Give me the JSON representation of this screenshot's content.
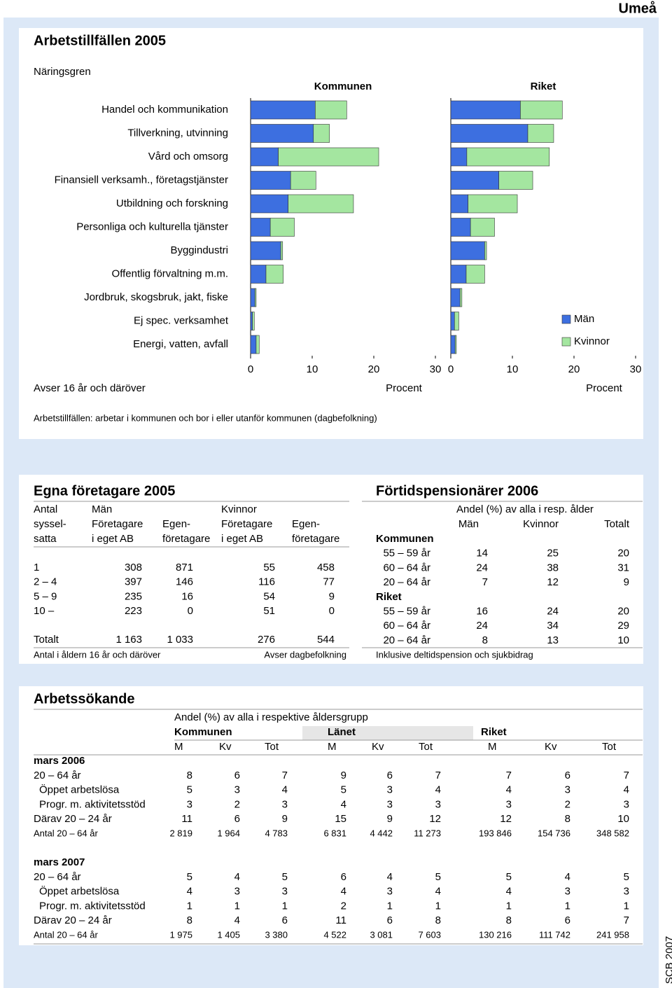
{
  "header": {
    "place": "Umeå",
    "footer_mark": "SCB 2007"
  },
  "arbetstillfallen": {
    "title": "Arbetstillfällen 2005",
    "note": "Avser 16 år och däröver",
    "footnote": "Arbetstillfällen: arbetar i kommunen och bor i eller utanför kommunen (dagbefolkning)"
  },
  "chart_data": [
    {
      "type": "bar",
      "orientation": "horizontal",
      "stacked": true,
      "title": "Kommunen",
      "ylabel": "Näringsgren",
      "xlabel": "Procent",
      "categories": [
        "Handel och kommunikation",
        "Tillverkning, utvinning",
        "Vård och omsorg",
        "Finansiell verksamh., företagstjänster",
        "Utbildning och forskning",
        "Personliga och kulturella tjänster",
        "Byggindustri",
        "Offentlig förvaltning m.m.",
        "Jordbruk, skogsbruk, jakt, fiske",
        "Ej spec. verksamhet",
        "Energi, vatten, avfall"
      ],
      "series": [
        {
          "color": "#3d6fe0",
          "values": [
            10.5,
            10.2,
            4.5,
            6.5,
            6.1,
            3.2,
            4.9,
            2.5,
            0.7,
            0.3,
            0.9
          ]
        },
        {
          "color": "#a4e6a0",
          "values": [
            5.1,
            2.6,
            16.3,
            4.1,
            10.6,
            3.9,
            0.3,
            2.8,
            0.2,
            0.3,
            0.5
          ]
        }
      ],
      "xlim": [
        0,
        30
      ],
      "xticks": [
        0,
        10,
        20,
        30
      ]
    },
    {
      "type": "bar",
      "orientation": "horizontal",
      "stacked": true,
      "title": "Riket",
      "xlabel": "Procent",
      "series": [
        {
          "name": "Män",
          "color": "#3d6fe0",
          "values": [
            11.3,
            12.5,
            2.6,
            7.8,
            2.8,
            3.2,
            5.5,
            2.5,
            1.5,
            0.6,
            0.7
          ]
        },
        {
          "name": "Kvinnor",
          "color": "#a4e6a0",
          "values": [
            6.8,
            4.2,
            13.4,
            5.5,
            8.0,
            3.9,
            0.3,
            3.0,
            0.3,
            0.7,
            0.2
          ]
        }
      ],
      "xlim": [
        0,
        30
      ],
      "xticks": [
        0,
        10,
        20,
        30
      ],
      "legend": "right"
    }
  ],
  "egna_foretagare": {
    "title": "Egna företagare 2005",
    "row_header": [
      "Antal",
      "syssel-",
      "satta"
    ],
    "groups": [
      "Män",
      "Kvinnor"
    ],
    "columns": [
      [
        "Företagare",
        "i eget AB"
      ],
      [
        "Egen-",
        "företagare"
      ],
      [
        "Företagare",
        "i eget AB"
      ],
      [
        "Egen-",
        "företagare"
      ]
    ],
    "rows": [
      {
        "label": "1",
        "values": [
          "308",
          "871",
          "55",
          "458"
        ]
      },
      {
        "label": "2 – 4",
        "values": [
          "397",
          "146",
          "116",
          "77"
        ]
      },
      {
        "label": "5 – 9",
        "values": [
          "235",
          "16",
          "54",
          "9"
        ]
      },
      {
        "label": "10 –",
        "values": [
          "223",
          "0",
          "51",
          "0"
        ]
      }
    ],
    "total": {
      "label": "Totalt",
      "values": [
        "1 163",
        "1 033",
        "276",
        "544"
      ]
    },
    "notes": [
      "Antal i åldern 16 år och däröver",
      "Avser dagbefolkning"
    ]
  },
  "fortidspensionarer": {
    "title": "Förtidspensionärer 2006",
    "subtitle": "Andel (%) av alla i resp. ålder",
    "columns": [
      "Män",
      "Kvinnor",
      "Totalt"
    ],
    "groups": [
      {
        "name": "Kommunen",
        "rows": [
          {
            "label": "55 – 59 år",
            "values": [
              "14",
              "25",
              "20"
            ]
          },
          {
            "label": "60 – 64 år",
            "values": [
              "24",
              "38",
              "31"
            ]
          },
          {
            "label": "20 – 64 år",
            "values": [
              "7",
              "12",
              "9"
            ]
          }
        ]
      },
      {
        "name": "Riket",
        "rows": [
          {
            "label": "55 – 59 år",
            "values": [
              "16",
              "24",
              "20"
            ]
          },
          {
            "label": "60 – 64 år",
            "values": [
              "24",
              "34",
              "29"
            ]
          },
          {
            "label": "20 – 64 år",
            "values": [
              "8",
              "13",
              "10"
            ]
          }
        ]
      }
    ],
    "note": "Inklusive deltidspension och sjukbidrag"
  },
  "arbetssokande": {
    "title": "Arbetssökande",
    "subtitle": "Andel (%) av alla i respektive åldersgrupp",
    "regions": [
      "Kommunen",
      "Länet",
      "Riket"
    ],
    "columns": [
      "M",
      "Kv",
      "Tot"
    ],
    "periods": [
      {
        "name": "mars 2006",
        "rows": [
          {
            "label": "20 – 64 år",
            "values": [
              "8",
              "6",
              "7",
              "9",
              "6",
              "7",
              "7",
              "6",
              "7"
            ]
          },
          {
            "label": "Öppet arbetslösa",
            "values": [
              "5",
              "3",
              "4",
              "5",
              "3",
              "4",
              "4",
              "3",
              "4"
            ]
          },
          {
            "label": "Progr. m. aktivitetsstöd",
            "values": [
              "3",
              "2",
              "3",
              "4",
              "3",
              "3",
              "3",
              "2",
              "3"
            ]
          },
          {
            "label": "Därav 20 – 24 år",
            "values": [
              "11",
              "6",
              "9",
              "15",
              "9",
              "12",
              "12",
              "8",
              "10"
            ]
          },
          {
            "label": "Antal 20 – 64 år",
            "values": [
              "2 819",
              "1 964",
              "4 783",
              "6 831",
              "4 442",
              "11 273",
              "193 846",
              "154 736",
              "348 582"
            ]
          }
        ]
      },
      {
        "name": "mars 2007",
        "rows": [
          {
            "label": "20 – 64 år",
            "values": [
              "5",
              "4",
              "5",
              "6",
              "4",
              "5",
              "5",
              "4",
              "5"
            ]
          },
          {
            "label": "Öppet arbetslösa",
            "values": [
              "4",
              "3",
              "3",
              "4",
              "3",
              "4",
              "4",
              "3",
              "3"
            ]
          },
          {
            "label": "Progr. m. aktivitetsstöd",
            "values": [
              "1",
              "1",
              "1",
              "2",
              "1",
              "1",
              "1",
              "1",
              "1"
            ]
          },
          {
            "label": "Därav 20 – 24 år",
            "values": [
              "8",
              "4",
              "6",
              "11",
              "6",
              "8",
              "8",
              "6",
              "7"
            ]
          },
          {
            "label": "Antal 20 – 64 år",
            "values": [
              "1 975",
              "1 405",
              "3 380",
              "4 522",
              "3 081",
              "7 603",
              "130 216",
              "111 742",
              "241 958"
            ]
          }
        ]
      }
    ]
  }
}
